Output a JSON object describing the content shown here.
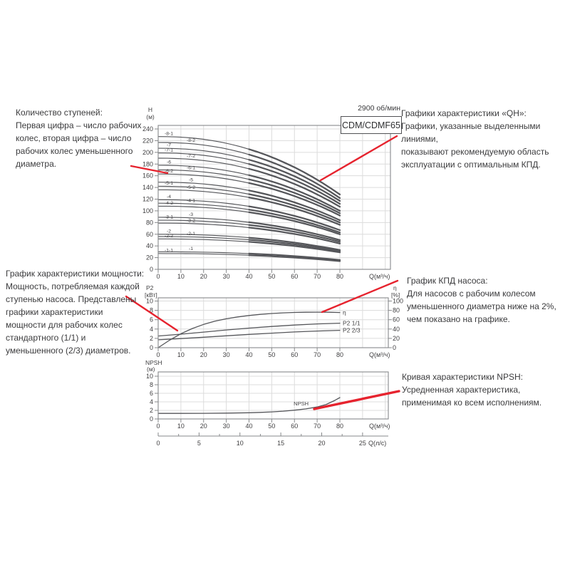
{
  "header": {
    "rpm": "2900 об/мин",
    "model": "CDM/CDMF65"
  },
  "colors": {
    "curve": "#55565a",
    "grid": "#dcdcdc",
    "axis": "#87898b",
    "tick_text": "#414042",
    "annotation_red": "#e6232e",
    "text": "#3b3b3d"
  },
  "annotations": {
    "stages": {
      "text": "Количество ступеней:\nПервая цифра – число рабочих\nколес, вторая цифра – число\nрабочих колес уменьшенного\nдиаметра."
    },
    "power": {
      "text": "График характеристики мощности:\nМощность, потребляемая каждой\nступенью насоса. Представлены\nграфики характеристики\nмощности для рабочих колес\nстандартного (1/1) и\nуменьшенного (2/3) диаметров."
    },
    "qh": {
      "text": "Графики характеристики «QH»:\nГрафики, указанные выделенными линиями,\nпоказывают рекомендуемую область\nэксплуатации с оптимальным КПД."
    },
    "efficiency": {
      "text": "График КПД насоса:\nДля насосов с рабочим колесом\nуменьшенного диаметра ниже на 2%,\nчем показано на графике."
    },
    "npsh": {
      "text": "Кривая характеристики NPSH:\nУсредненная характеристика,\nприменимая ко всем исполнениям."
    }
  },
  "chart_data": [
    {
      "id": "qh",
      "type": "line",
      "title": "CDM/CDMF65",
      "rpm": "2900 об/мин",
      "xlabel": "Q(м³/ч)",
      "ylabel": [
        "H",
        "(м)"
      ],
      "xlim": [
        0,
        102
      ],
      "ylim": [
        0,
        246
      ],
      "x_ticks": [
        0,
        10,
        20,
        30,
        40,
        50,
        60,
        70,
        80
      ],
      "y_ticks": [
        0,
        20,
        40,
        60,
        80,
        100,
        120,
        140,
        160,
        180,
        200,
        220,
        240
      ],
      "note": "h0 = head (м) at Q=0, h80 = head at Q=80 м³/ч; bold segment Q=40..80 is recommended range",
      "curves": [
        {
          "name": "-8-1",
          "h0": 227,
          "h80": 128,
          "col": 0
        },
        {
          "name": "-8-2",
          "h0": 217,
          "h80": 122,
          "col": 1
        },
        {
          "name": "-7",
          "h0": 207,
          "h80": 117,
          "col": 0
        },
        {
          "name": "-7-1",
          "h0": 199,
          "h80": 112,
          "col": 0
        },
        {
          "name": "-7-2",
          "h0": 190,
          "h80": 107,
          "col": 1
        },
        {
          "name": "-6",
          "h0": 178,
          "h80": 100,
          "col": 0
        },
        {
          "name": "-6-1",
          "h0": 170,
          "h80": 96,
          "col": 1
        },
        {
          "name": "-6-2",
          "h0": 163,
          "h80": 92,
          "col": 0
        },
        {
          "name": "-5",
          "h0": 149,
          "h80": 84,
          "col": 1
        },
        {
          "name": "-5-1",
          "h0": 142,
          "h80": 80,
          "col": 0
        },
        {
          "name": "-5-2",
          "h0": 136,
          "h80": 76,
          "col": 1
        },
        {
          "name": "-4",
          "h0": 119,
          "h80": 67,
          "col": 0
        },
        {
          "name": "-4-1",
          "h0": 113,
          "h80": 63,
          "col": 1
        },
        {
          "name": "-4-2",
          "h0": 108,
          "h80": 60,
          "col": 0
        },
        {
          "name": "-3",
          "h0": 89,
          "h80": 50,
          "col": 1
        },
        {
          "name": "-3-1",
          "h0": 84,
          "h80": 47,
          "col": 0
        },
        {
          "name": "-3-2",
          "h0": 79,
          "h80": 44,
          "col": 1
        },
        {
          "name": "-2",
          "h0": 60,
          "h80": 33,
          "col": 0
        },
        {
          "name": "-2-1",
          "h0": 56,
          "h80": 31,
          "col": 1
        },
        {
          "name": "-2-2",
          "h0": 52,
          "h80": 29,
          "col": 0
        },
        {
          "name": "-1",
          "h0": 30,
          "h80": 16,
          "col": 1
        },
        {
          "name": "-1-1",
          "h0": 27,
          "h80": 14,
          "col": 0
        }
      ]
    },
    {
      "id": "p2_eta",
      "type": "line",
      "xlabel": "Q(м³/ч)",
      "ylabel_left": [
        "P2",
        "[кВт]"
      ],
      "ylabel_right": [
        "η",
        "[%]"
      ],
      "x_ticks": [
        0,
        10,
        20,
        30,
        40,
        50,
        60,
        70,
        80
      ],
      "y_ticks_left": [
        0,
        2,
        4,
        6,
        8,
        10
      ],
      "y_ticks_right": [
        0,
        20,
        40,
        60,
        80,
        100
      ],
      "series": [
        {
          "name": "η",
          "axis": "right",
          "x": [
            0,
            5,
            10,
            15,
            20,
            25,
            30,
            35,
            40,
            45,
            50,
            55,
            60,
            65,
            70,
            75,
            80
          ],
          "y": [
            0,
            16,
            30,
            41,
            50,
            57,
            62,
            66,
            69,
            71.5,
            73.3,
            74.6,
            75.5,
            76,
            76.2,
            76,
            75.4
          ]
        },
        {
          "name": "P2 1/1",
          "axis": "left",
          "x": [
            0,
            10,
            20,
            30,
            40,
            50,
            60,
            70,
            80
          ],
          "y": [
            2.5,
            2.9,
            3.35,
            3.8,
            4.2,
            4.55,
            4.85,
            5.1,
            5.25
          ]
        },
        {
          "name": "P2 2/3",
          "axis": "left",
          "x": [
            0,
            10,
            20,
            30,
            40,
            50,
            60,
            70,
            80
          ],
          "y": [
            1.7,
            1.95,
            2.25,
            2.55,
            2.85,
            3.12,
            3.38,
            3.58,
            3.72
          ]
        }
      ]
    },
    {
      "id": "npsh",
      "type": "line",
      "xlabel": "Q(м³/ч)",
      "xlabel2": "Q(л/с)",
      "ylabel": [
        "NPSH",
        "(м)"
      ],
      "x_ticks": [
        0,
        10,
        20,
        30,
        40,
        50,
        60,
        70,
        80
      ],
      "x2_ticks": [
        0,
        5,
        10,
        15,
        20,
        25
      ],
      "y_ticks": [
        0,
        2,
        4,
        6,
        8,
        10
      ],
      "series": [
        {
          "name": "NPSH",
          "x": [
            0,
            10,
            20,
            30,
            40,
            45,
            50,
            55,
            60,
            65,
            70,
            74,
            78,
            80
          ],
          "y": [
            1.3,
            1.3,
            1.32,
            1.36,
            1.45,
            1.53,
            1.65,
            1.82,
            2.05,
            2.35,
            2.8,
            3.4,
            4.4,
            5.0
          ]
        }
      ]
    }
  ]
}
